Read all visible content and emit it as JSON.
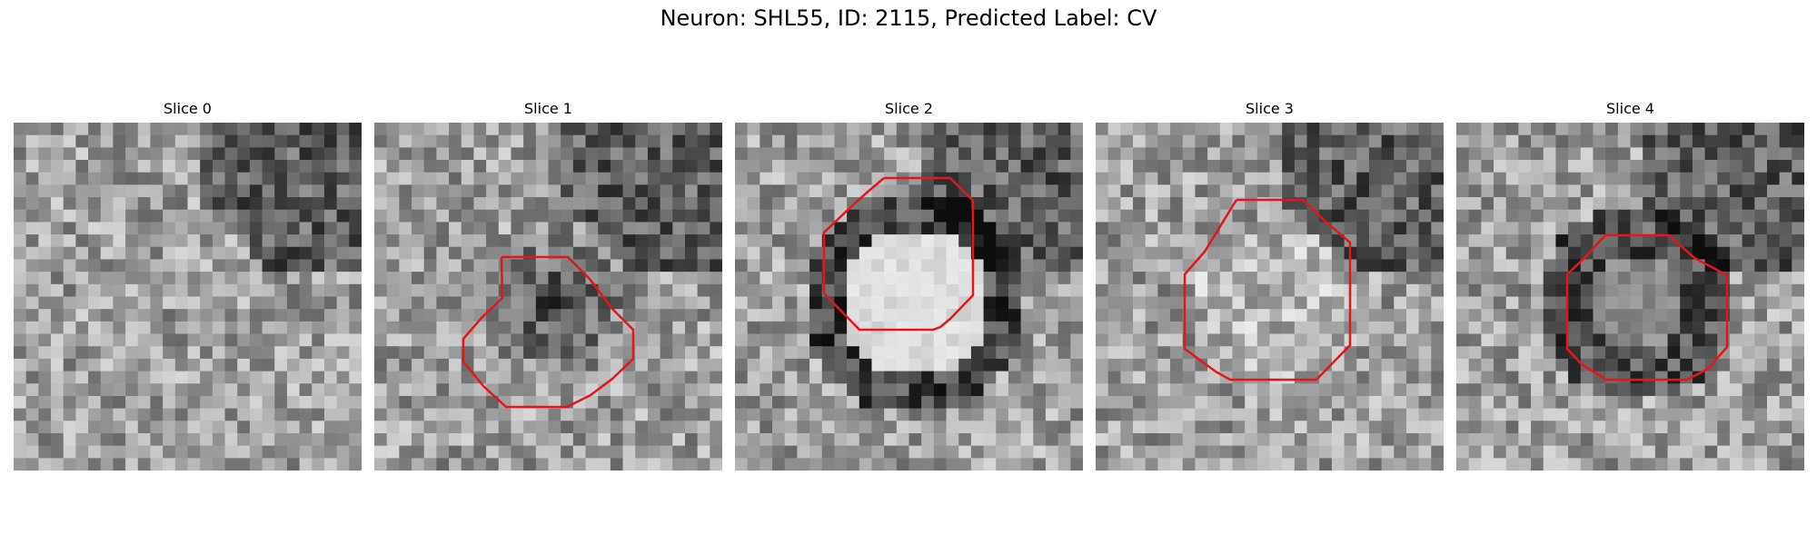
{
  "figure": {
    "title": "Neuron: SHL55, ID: 2115, Predicted Label: CV"
  },
  "panels": [
    {
      "title": "Slice 0",
      "has_outline": false,
      "seed": 11,
      "blob": "none"
    },
    {
      "title": "Slice 1",
      "has_outline": true,
      "seed": 23,
      "blob": "dark"
    },
    {
      "title": "Slice 2",
      "has_outline": true,
      "seed": 37,
      "blob": "bright-ring"
    },
    {
      "title": "Slice 3",
      "has_outline": true,
      "seed": 51,
      "blob": "faint"
    },
    {
      "title": "Slice 4",
      "has_outline": true,
      "seed": 67,
      "blob": "dark-ring"
    }
  ],
  "colors": {
    "outline": "#e8141b"
  }
}
